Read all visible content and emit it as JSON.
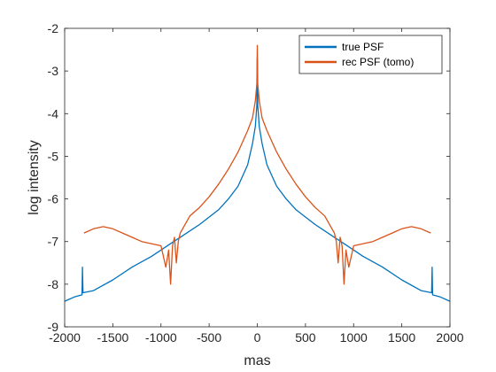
{
  "chart_data": {
    "type": "line",
    "title": "",
    "xlabel": "mas",
    "ylabel": "log intensity",
    "xlim": [
      -2000,
      2000
    ],
    "ylim": [
      -9,
      -2
    ],
    "xticks": [
      -2000,
      -1500,
      -1000,
      -500,
      0,
      500,
      1000,
      1500,
      2000
    ],
    "xtick_labels": [
      "-2000",
      "-1500",
      "-1000",
      "-500",
      "0",
      "500",
      "1000",
      "1500",
      "2000"
    ],
    "yticks": [
      -9,
      -8,
      -7,
      -6,
      -5,
      -4,
      -3,
      -2
    ],
    "ytick_labels": [
      "-9",
      "-8",
      "-7",
      "-6",
      "-5",
      "-4",
      "-3",
      "-2"
    ],
    "grid": false,
    "legend_position": "top-right",
    "series": [
      {
        "name": "true PSF",
        "color": "#0072BD",
        "x": [
          -2000,
          -1900,
          -1820,
          -1815,
          -1810,
          -1700,
          -1500,
          -1300,
          -1100,
          -1000,
          -900,
          -800,
          -600,
          -400,
          -300,
          -200,
          -100,
          -50,
          -20,
          -5,
          0,
          5,
          20,
          50,
          100,
          200,
          300,
          400,
          600,
          800,
          900,
          1000,
          1100,
          1300,
          1500,
          1700,
          1810,
          1815,
          1820,
          1900,
          2000
        ],
        "y": [
          -8.4,
          -8.3,
          -8.25,
          -7.6,
          -8.2,
          -8.15,
          -7.9,
          -7.6,
          -7.35,
          -7.2,
          -7.05,
          -6.9,
          -6.6,
          -6.25,
          -6.0,
          -5.7,
          -5.2,
          -4.7,
          -4.3,
          -3.8,
          -2.7,
          -3.8,
          -4.3,
          -4.7,
          -5.2,
          -5.7,
          -6.0,
          -6.25,
          -6.6,
          -6.9,
          -7.05,
          -7.2,
          -7.35,
          -7.6,
          -7.9,
          -8.15,
          -8.2,
          -7.6,
          -8.25,
          -8.3,
          -8.4
        ]
      },
      {
        "name": "rec PSF (tomo)",
        "color": "#D95319",
        "x": [
          -1800,
          -1700,
          -1600,
          -1500,
          -1400,
          -1300,
          -1200,
          -1100,
          -1000,
          -950,
          -920,
          -900,
          -880,
          -860,
          -840,
          -820,
          -800,
          -700,
          -600,
          -500,
          -400,
          -300,
          -200,
          -100,
          -50,
          -20,
          -5,
          0,
          5,
          20,
          50,
          100,
          200,
          300,
          400,
          500,
          600,
          700,
          800,
          820,
          840,
          860,
          880,
          900,
          920,
          950,
          1000,
          1100,
          1200,
          1300,
          1400,
          1500,
          1600,
          1700,
          1800
        ],
        "y": [
          -6.8,
          -6.7,
          -6.65,
          -6.7,
          -6.8,
          -6.9,
          -7.0,
          -7.05,
          -7.1,
          -7.6,
          -7.2,
          -8.0,
          -7.1,
          -6.9,
          -7.5,
          -7.0,
          -6.8,
          -6.4,
          -6.2,
          -5.95,
          -5.65,
          -5.3,
          -4.9,
          -4.4,
          -4.1,
          -3.7,
          -3.3,
          -2.4,
          -3.3,
          -3.7,
          -4.1,
          -4.4,
          -4.9,
          -5.3,
          -5.65,
          -5.95,
          -6.2,
          -6.4,
          -6.8,
          -7.0,
          -7.5,
          -6.9,
          -7.1,
          -8.0,
          -7.2,
          -7.6,
          -7.1,
          -7.05,
          -7.0,
          -6.9,
          -6.8,
          -6.7,
          -6.65,
          -6.7,
          -6.8
        ]
      }
    ]
  }
}
